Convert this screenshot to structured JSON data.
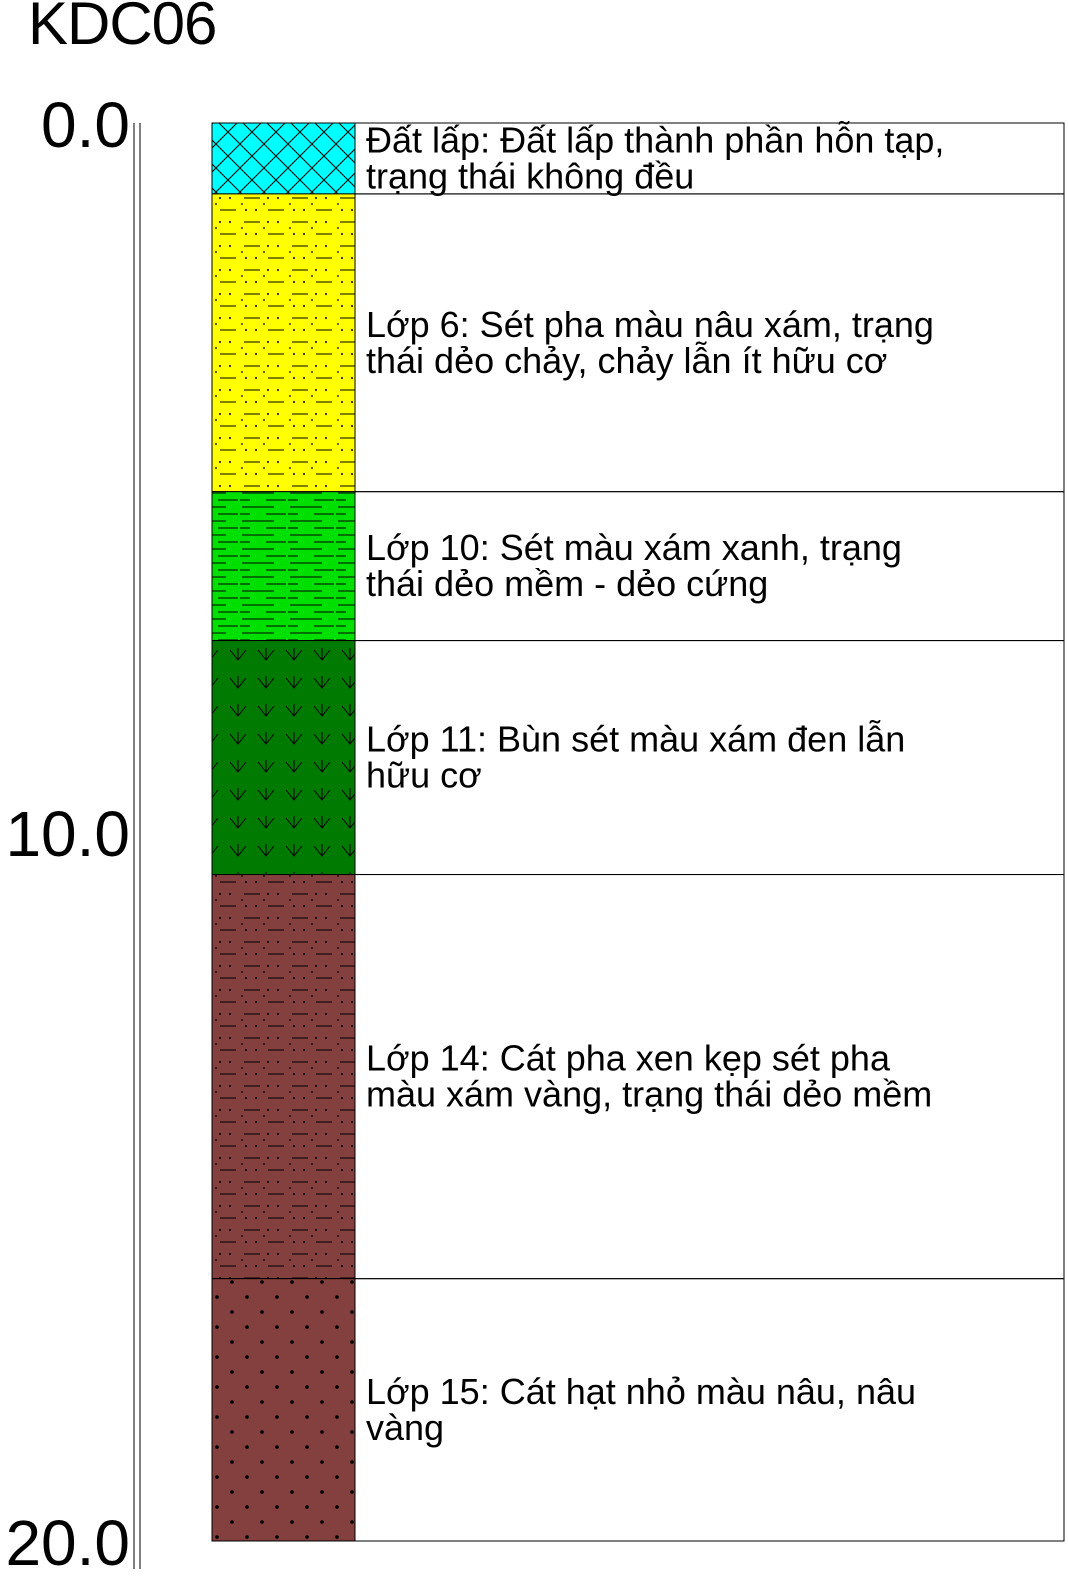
{
  "borehole": {
    "name": "KDC06"
  },
  "depth_scale": {
    "top": 0.0,
    "bottom": 20.0,
    "labels": [
      "0.0",
      "10.0",
      "20.0"
    ],
    "label_values": [
      0.0,
      10.0,
      20.0
    ]
  },
  "layers": [
    {
      "top": 0.0,
      "bottom": 1.0,
      "pattern": "crosshatch",
      "color": "#00ffff",
      "lines": [
        "Đất lấp: Đất lấp thành phần hỗn tạp,",
        "trạng thái không đều"
      ]
    },
    {
      "top": 1.0,
      "bottom": 5.2,
      "pattern": "dots-dashes",
      "color": "#ffff00",
      "lines": [
        "Lớp 6: Sét pha màu nâu xám, trạng",
        "thái dẻo chảy, chảy lẫn ít hữu cơ"
      ]
    },
    {
      "top": 5.2,
      "bottom": 7.3,
      "pattern": "dashes",
      "color": "#00e000",
      "lines": [
        "Lớp 10: Sét màu xám xanh, trạng",
        "thái dẻo mềm - dẻo cứng"
      ]
    },
    {
      "top": 7.3,
      "bottom": 10.6,
      "pattern": "arrows",
      "color": "#007a00",
      "lines": [
        "Lớp 11: Bùn sét màu xám đen lẫn",
        "hữu cơ"
      ]
    },
    {
      "top": 10.6,
      "bottom": 16.3,
      "pattern": "dots-dashes",
      "color": "#84403e",
      "lines": [
        "Lớp 14: Cát pha xen kẹp sét pha",
        "màu xám vàng, trạng thái dẻo mềm"
      ]
    },
    {
      "top": 16.3,
      "bottom": 20.0,
      "pattern": "diamond-dots",
      "color": "#84403e",
      "lines": [
        "Lớp 15: Cát hạt nhỏ màu nâu, nâu",
        "vàng"
      ]
    }
  ]
}
